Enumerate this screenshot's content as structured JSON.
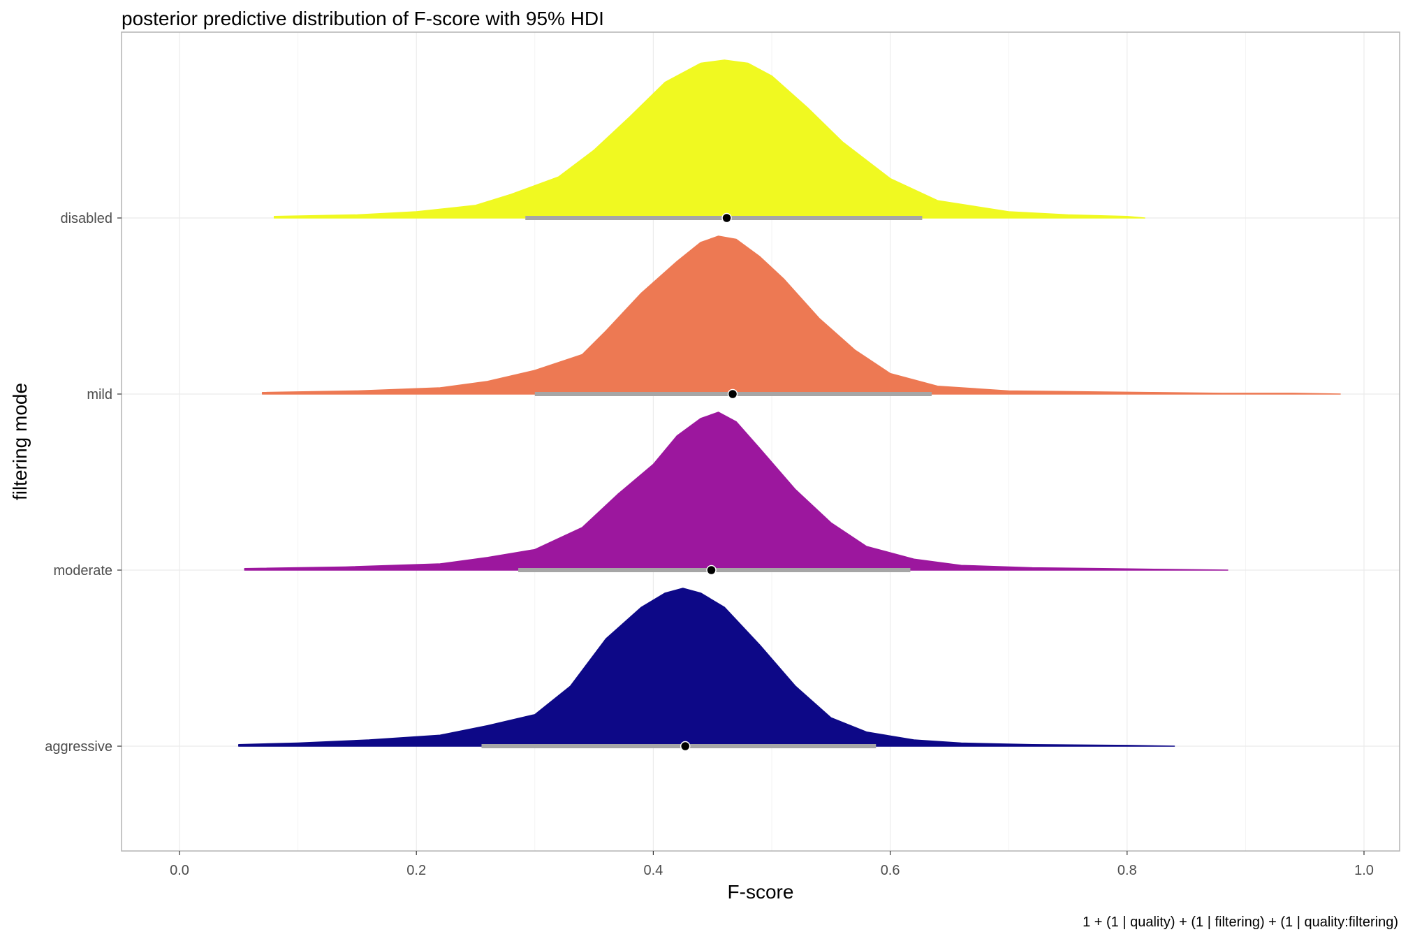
{
  "chart_data": {
    "type": "density_ridges",
    "title": "posterior predictive distribution of F-score with 95% HDI",
    "xlabel": "F-score",
    "ylabel": "filtering mode",
    "caption": "1 + (1 | quality) + (1 | filtering) + (1 | quality:filtering)",
    "xlim": [
      -0.05,
      1.03
    ],
    "x_ticks": [
      "0.0",
      "0.2",
      "0.4",
      "0.6",
      "0.8",
      "1.0"
    ],
    "grid": true,
    "legend": "none",
    "series": [
      {
        "name": "disabled",
        "color": "#f0f921",
        "density_x": [
          0.08,
          0.15,
          0.2,
          0.25,
          0.28,
          0.32,
          0.35,
          0.38,
          0.41,
          0.44,
          0.46,
          0.48,
          0.5,
          0.53,
          0.56,
          0.6,
          0.64,
          0.7,
          0.75,
          0.8,
          0.815
        ],
        "density_y": [
          0.01,
          0.02,
          0.04,
          0.08,
          0.15,
          0.26,
          0.43,
          0.64,
          0.86,
          0.98,
          1.0,
          0.98,
          0.9,
          0.7,
          0.48,
          0.25,
          0.11,
          0.04,
          0.02,
          0.01,
          0.0
        ],
        "median": 0.462,
        "hdi": [
          0.292,
          0.627
        ]
      },
      {
        "name": "mild",
        "color": "#ed7953",
        "density_x": [
          0.07,
          0.15,
          0.22,
          0.26,
          0.3,
          0.34,
          0.36,
          0.39,
          0.42,
          0.44,
          0.455,
          0.47,
          0.49,
          0.51,
          0.54,
          0.57,
          0.6,
          0.64,
          0.7,
          0.76,
          0.82,
          0.88,
          0.94,
          0.98
        ],
        "density_y": [
          0.01,
          0.02,
          0.04,
          0.08,
          0.15,
          0.25,
          0.4,
          0.64,
          0.84,
          0.96,
          1.0,
          0.98,
          0.87,
          0.73,
          0.48,
          0.28,
          0.13,
          0.05,
          0.02,
          0.015,
          0.01,
          0.005,
          0.005,
          0.0
        ],
        "median": 0.467,
        "hdi": [
          0.3,
          0.635
        ]
      },
      {
        "name": "moderate",
        "color": "#9c179e",
        "density_x": [
          0.055,
          0.14,
          0.22,
          0.26,
          0.3,
          0.34,
          0.37,
          0.4,
          0.42,
          0.44,
          0.455,
          0.47,
          0.49,
          0.52,
          0.55,
          0.58,
          0.62,
          0.66,
          0.72,
          0.78,
          0.83,
          0.885
        ],
        "density_y": [
          0.01,
          0.02,
          0.04,
          0.08,
          0.13,
          0.27,
          0.48,
          0.67,
          0.85,
          0.96,
          1.0,
          0.94,
          0.77,
          0.51,
          0.3,
          0.15,
          0.07,
          0.03,
          0.015,
          0.01,
          0.005,
          0.0
        ],
        "median": 0.449,
        "hdi": [
          0.286,
          0.617
        ]
      },
      {
        "name": "aggressive",
        "color": "#0d0887",
        "density_x": [
          0.05,
          0.1,
          0.16,
          0.22,
          0.26,
          0.3,
          0.33,
          0.36,
          0.39,
          0.41,
          0.425,
          0.44,
          0.46,
          0.49,
          0.52,
          0.55,
          0.58,
          0.62,
          0.66,
          0.72,
          0.8,
          0.84
        ],
        "density_y": [
          0.01,
          0.02,
          0.04,
          0.07,
          0.13,
          0.2,
          0.38,
          0.68,
          0.88,
          0.97,
          1.0,
          0.97,
          0.88,
          0.64,
          0.38,
          0.18,
          0.09,
          0.04,
          0.02,
          0.01,
          0.005,
          0.0
        ],
        "median": 0.427,
        "hdi": [
          0.255,
          0.588
        ]
      }
    ]
  }
}
